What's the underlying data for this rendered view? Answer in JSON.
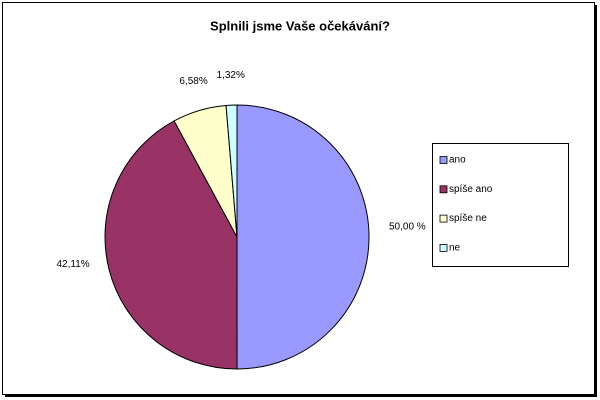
{
  "chart_data": {
    "type": "pie",
    "title": "Splnili jsme Vaše očekávání?",
    "categories": [
      "ano",
      "spíše ano",
      "spíše ne",
      "ne"
    ],
    "values": [
      50,
      42.11,
      6.58,
      1.32
    ],
    "value_labels": [
      "50,00 %",
      "42,11%",
      "6,58%",
      "1,32%"
    ],
    "colors": [
      "#9999ff",
      "#993366",
      "#ffffcc",
      "#ccffff"
    ],
    "legend": "right"
  }
}
